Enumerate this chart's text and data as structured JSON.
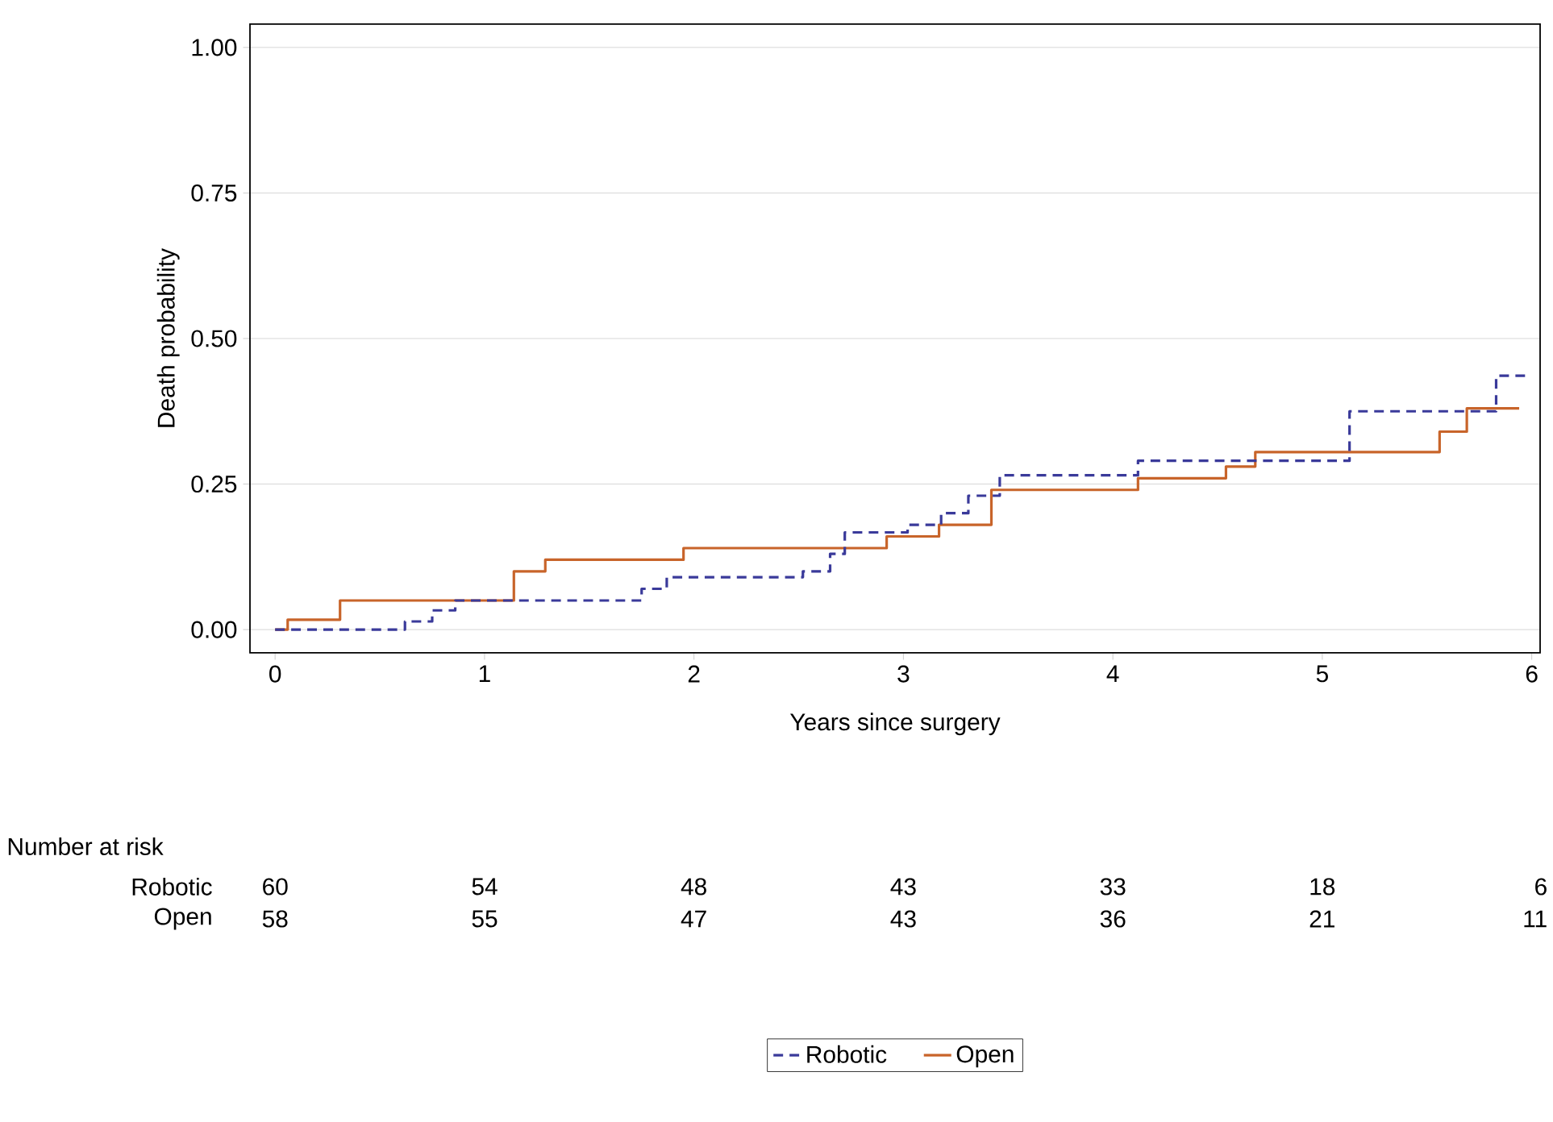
{
  "chart_data": {
    "type": "step",
    "xlabel": "Years since surgery",
    "ylabel": "Death probability",
    "xlim": [
      -0.12,
      6.04
    ],
    "ylim": [
      -0.04,
      1.04
    ],
    "xticks": [
      0,
      1,
      2,
      3,
      4,
      5,
      6
    ],
    "yticks": [
      {
        "value": 0,
        "label": "0.00"
      },
      {
        "value": 0.25,
        "label": "0.25"
      },
      {
        "value": 0.5,
        "label": "0.50"
      },
      {
        "value": 0.75,
        "label": "0.75"
      },
      {
        "value": 1,
        "label": "1.00"
      }
    ],
    "grid": "y",
    "legend": "bottom",
    "series": [
      {
        "name": "Robotic",
        "color": "#3a3a9a",
        "line_style": "dashed",
        "x": [
          0,
          0.62,
          0.75,
          0.86,
          1.75,
          1.87,
          2.52,
          2.65,
          2.72,
          3.02,
          3.18,
          3.31,
          3.46,
          4.12,
          5.13,
          5.83,
          5.98
        ],
        "values": [
          0,
          0.014,
          0.033,
          0.05,
          0.07,
          0.09,
          0.1,
          0.13,
          0.167,
          0.18,
          0.2,
          0.23,
          0.265,
          0.29,
          0.375,
          0.436,
          0.436
        ]
      },
      {
        "name": "Open",
        "color": "#c8642a",
        "line_style": "solid",
        "x": [
          0,
          0.06,
          0.31,
          1.14,
          1.29,
          1.95,
          2.92,
          3.17,
          3.42,
          4.12,
          4.54,
          4.68,
          5.56,
          5.69,
          5.94
        ],
        "values": [
          0,
          0.017,
          0.05,
          0.1,
          0.12,
          0.14,
          0.16,
          0.18,
          0.24,
          0.26,
          0.28,
          0.305,
          0.34,
          0.38,
          0.38
        ]
      }
    ],
    "annotations": [
      "Number at risk",
      "Robotic",
      "60",
      "54",
      "48",
      "43",
      "33",
      "18",
      "6",
      "Open",
      "58",
      "55",
      "47",
      "43",
      "36",
      "21",
      "11"
    ]
  }
}
